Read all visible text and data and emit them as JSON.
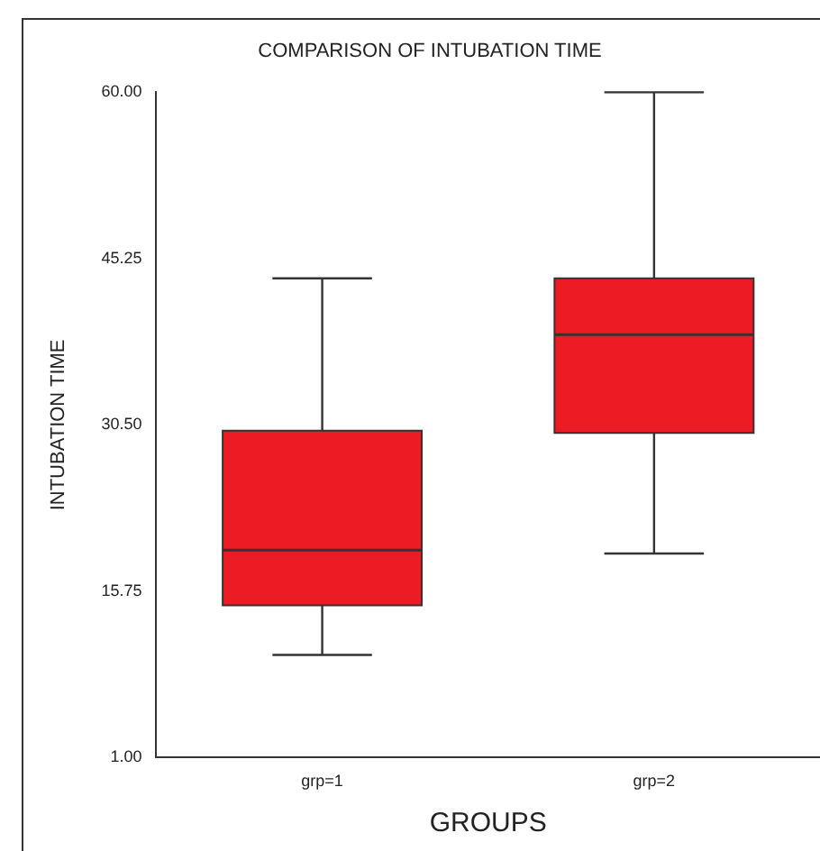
{
  "chart_data": {
    "type": "box",
    "title": "COMPARISON OF INTUBATION TIME",
    "xlabel": "GROUPS",
    "ylabel": "INTUBATION TIME",
    "categories": [
      "grp=1",
      "grp=2"
    ],
    "boxes": [
      {
        "low": 10.1,
        "q1": 14.5,
        "median": 19.4,
        "q3": 30.0,
        "high": 43.5
      },
      {
        "low": 19.1,
        "q1": 29.8,
        "median": 38.5,
        "q3": 43.5,
        "high": 60.0
      }
    ],
    "color": "#ed1c24",
    "ylim": [
      1,
      60
    ],
    "yticks": [
      {
        "value": 1,
        "label": "1.00"
      },
      {
        "value": 15.75,
        "label": "15.75"
      },
      {
        "value": 30.5,
        "label": "30.50"
      },
      {
        "value": 45.25,
        "label": "45.25"
      },
      {
        "value": 60,
        "label": "60.00"
      }
    ]
  }
}
